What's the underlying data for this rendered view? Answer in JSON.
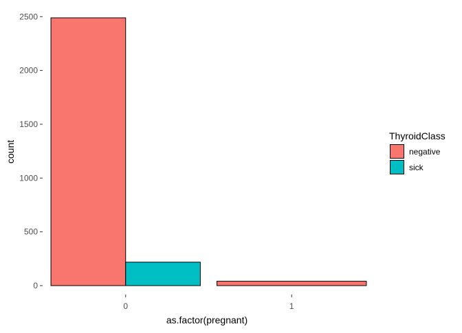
{
  "chart_data": {
    "type": "bar",
    "position": "dodge",
    "xlabel": "as.factor(pregnant)",
    "ylabel": "count",
    "categories": [
      "0",
      "1"
    ],
    "ylim": [
      0,
      2600
    ],
    "yticks": [
      0,
      500,
      1000,
      1500,
      2000,
      2500
    ],
    "grid": false,
    "legend": {
      "title": "ThyroidClass",
      "placement": "right"
    },
    "series": [
      {
        "name": "negative",
        "color": "#F8766D",
        "values": [
          2489,
          41
        ]
      },
      {
        "name": "sick",
        "color": "#00BFC4",
        "values": [
          218,
          null
        ]
      }
    ]
  }
}
